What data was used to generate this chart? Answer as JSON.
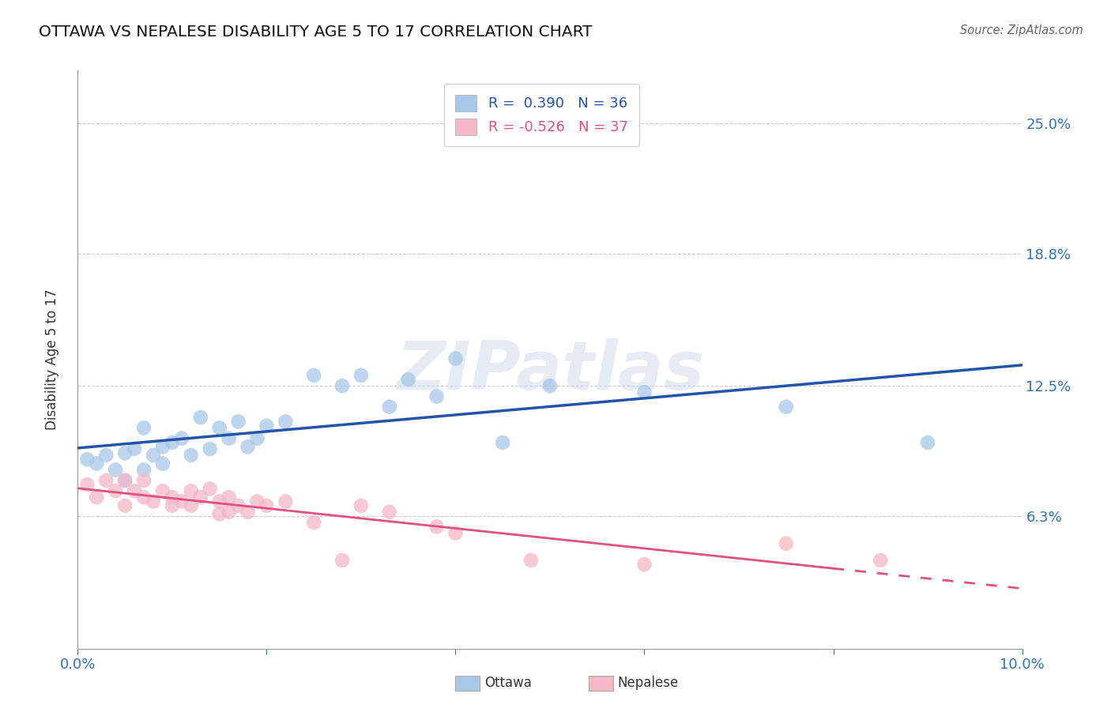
{
  "title": "OTTAWA VS NEPALESE DISABILITY AGE 5 TO 17 CORRELATION CHART",
  "source": "Source: ZipAtlas.com",
  "ylabel_label": "Disability Age 5 to 17",
  "xlim": [
    0.0,
    0.1
  ],
  "ylim": [
    0.0,
    0.275
  ],
  "xtick_positions": [
    0.0,
    0.02,
    0.04,
    0.06,
    0.08,
    0.1
  ],
  "xticklabels": [
    "0.0%",
    "",
    "",
    "",
    "",
    "10.0%"
  ],
  "ytick_positions": [
    0.063,
    0.125,
    0.188,
    0.25
  ],
  "yticklabels": [
    "6.3%",
    "12.5%",
    "18.8%",
    "25.0%"
  ],
  "ottawa_R": 0.39,
  "ottawa_N": 36,
  "nepalese_R": -0.526,
  "nepalese_N": 37,
  "ottawa_color": "#a8c8e8",
  "nepalese_color": "#f4b8c8",
  "ottawa_line_color": "#2255aa",
  "nepalese_line_color": "#e05080",
  "ottawa_x": [
    0.001,
    0.002,
    0.003,
    0.004,
    0.005,
    0.005,
    0.006,
    0.007,
    0.007,
    0.008,
    0.009,
    0.009,
    0.01,
    0.011,
    0.012,
    0.013,
    0.014,
    0.015,
    0.016,
    0.017,
    0.018,
    0.019,
    0.02,
    0.022,
    0.025,
    0.028,
    0.03,
    0.033,
    0.035,
    0.038,
    0.04,
    0.045,
    0.05,
    0.06,
    0.075,
    0.09
  ],
  "ottawa_y": [
    0.09,
    0.088,
    0.092,
    0.085,
    0.093,
    0.08,
    0.095,
    0.085,
    0.105,
    0.092,
    0.088,
    0.096,
    0.098,
    0.1,
    0.092,
    0.11,
    0.095,
    0.105,
    0.1,
    0.108,
    0.096,
    0.1,
    0.106,
    0.108,
    0.13,
    0.125,
    0.13,
    0.115,
    0.128,
    0.12,
    0.138,
    0.098,
    0.125,
    0.122,
    0.115,
    0.098
  ],
  "nepalese_x": [
    0.001,
    0.002,
    0.003,
    0.004,
    0.005,
    0.005,
    0.006,
    0.007,
    0.007,
    0.008,
    0.009,
    0.01,
    0.01,
    0.011,
    0.012,
    0.012,
    0.013,
    0.014,
    0.015,
    0.015,
    0.016,
    0.016,
    0.017,
    0.018,
    0.019,
    0.02,
    0.022,
    0.025,
    0.028,
    0.03,
    0.033,
    0.038,
    0.04,
    0.048,
    0.06,
    0.075,
    0.085
  ],
  "nepalese_y": [
    0.078,
    0.072,
    0.08,
    0.075,
    0.08,
    0.068,
    0.075,
    0.072,
    0.08,
    0.07,
    0.075,
    0.068,
    0.072,
    0.07,
    0.075,
    0.068,
    0.072,
    0.076,
    0.07,
    0.064,
    0.072,
    0.065,
    0.068,
    0.065,
    0.07,
    0.068,
    0.07,
    0.06,
    0.042,
    0.068,
    0.065,
    0.058,
    0.055,
    0.042,
    0.04,
    0.05,
    0.042
  ],
  "nepalese_line_solid_end": 0.08,
  "watermark_text": "ZIPatlas",
  "background_color": "#ffffff",
  "grid_color": "#cccccc",
  "legend_bottom_labels": [
    "Ottawa",
    "Nepalese"
  ]
}
